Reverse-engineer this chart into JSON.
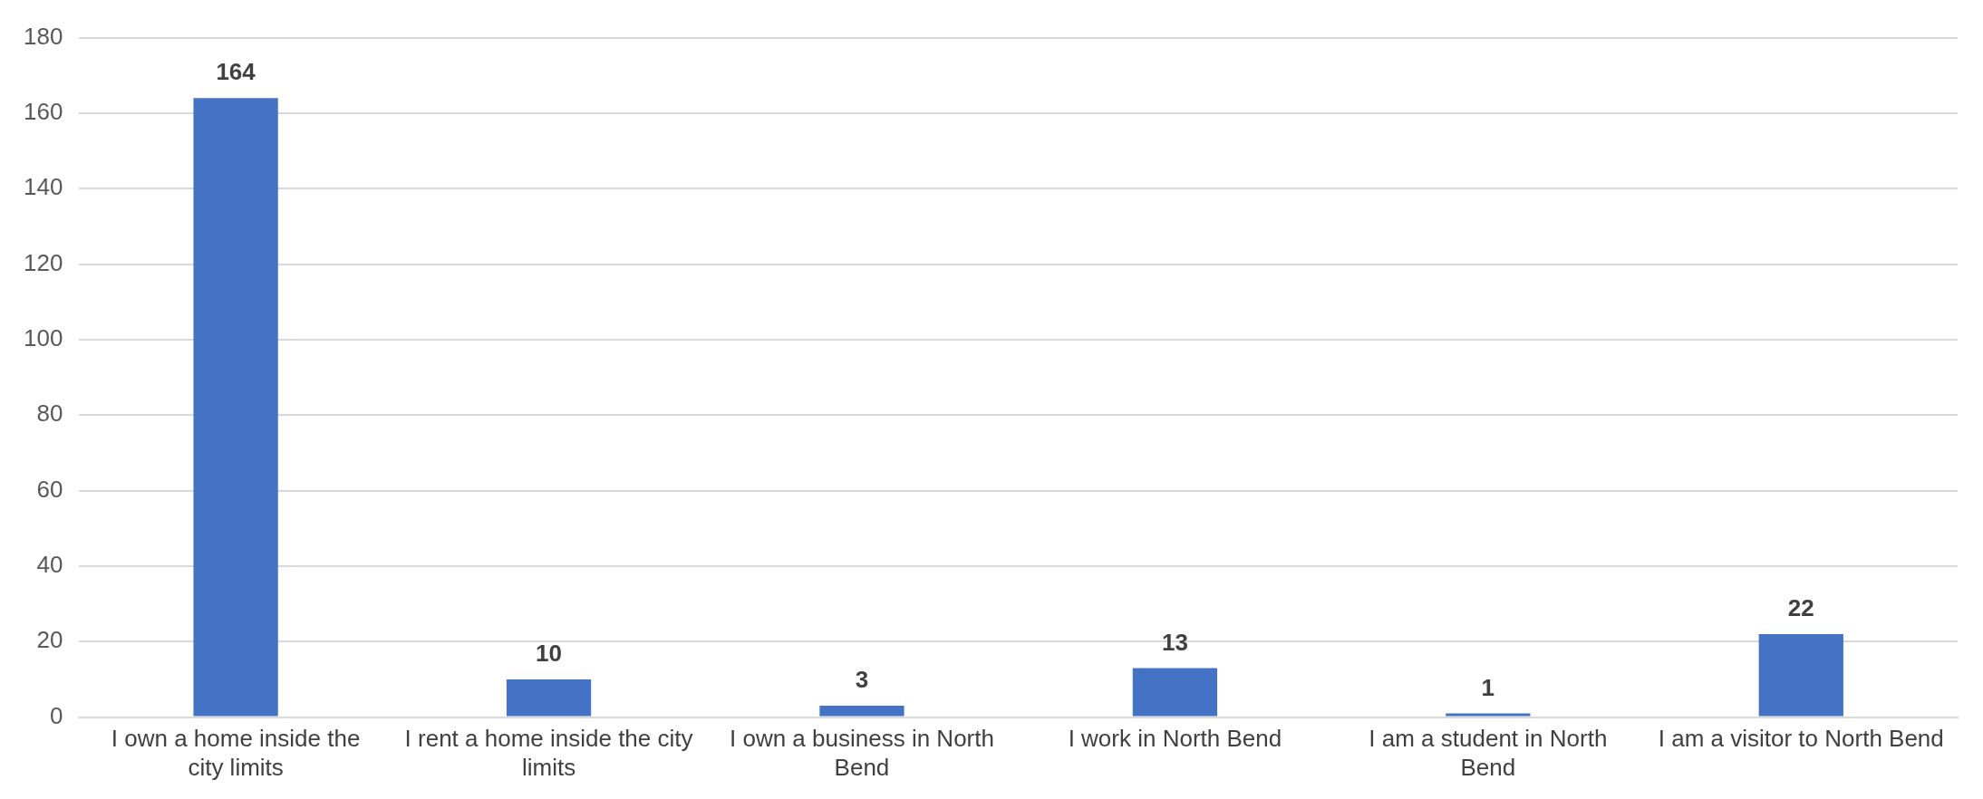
{
  "chart_data": {
    "type": "bar",
    "categories": [
      "I own a home inside the city limits",
      "I rent a home inside the city limits",
      "I own a business in North Bend",
      "I work in North Bend",
      "I am a student in North Bend",
      "I am a visitor to North Bend"
    ],
    "values": [
      164,
      10,
      3,
      13,
      1,
      22
    ],
    "color": "#4472c4",
    "ylim": [
      0,
      180
    ],
    "yticks": [
      0,
      20,
      40,
      60,
      80,
      100,
      120,
      140,
      160,
      180
    ],
    "grid": "y",
    "data_labels": true,
    "legend": false
  }
}
